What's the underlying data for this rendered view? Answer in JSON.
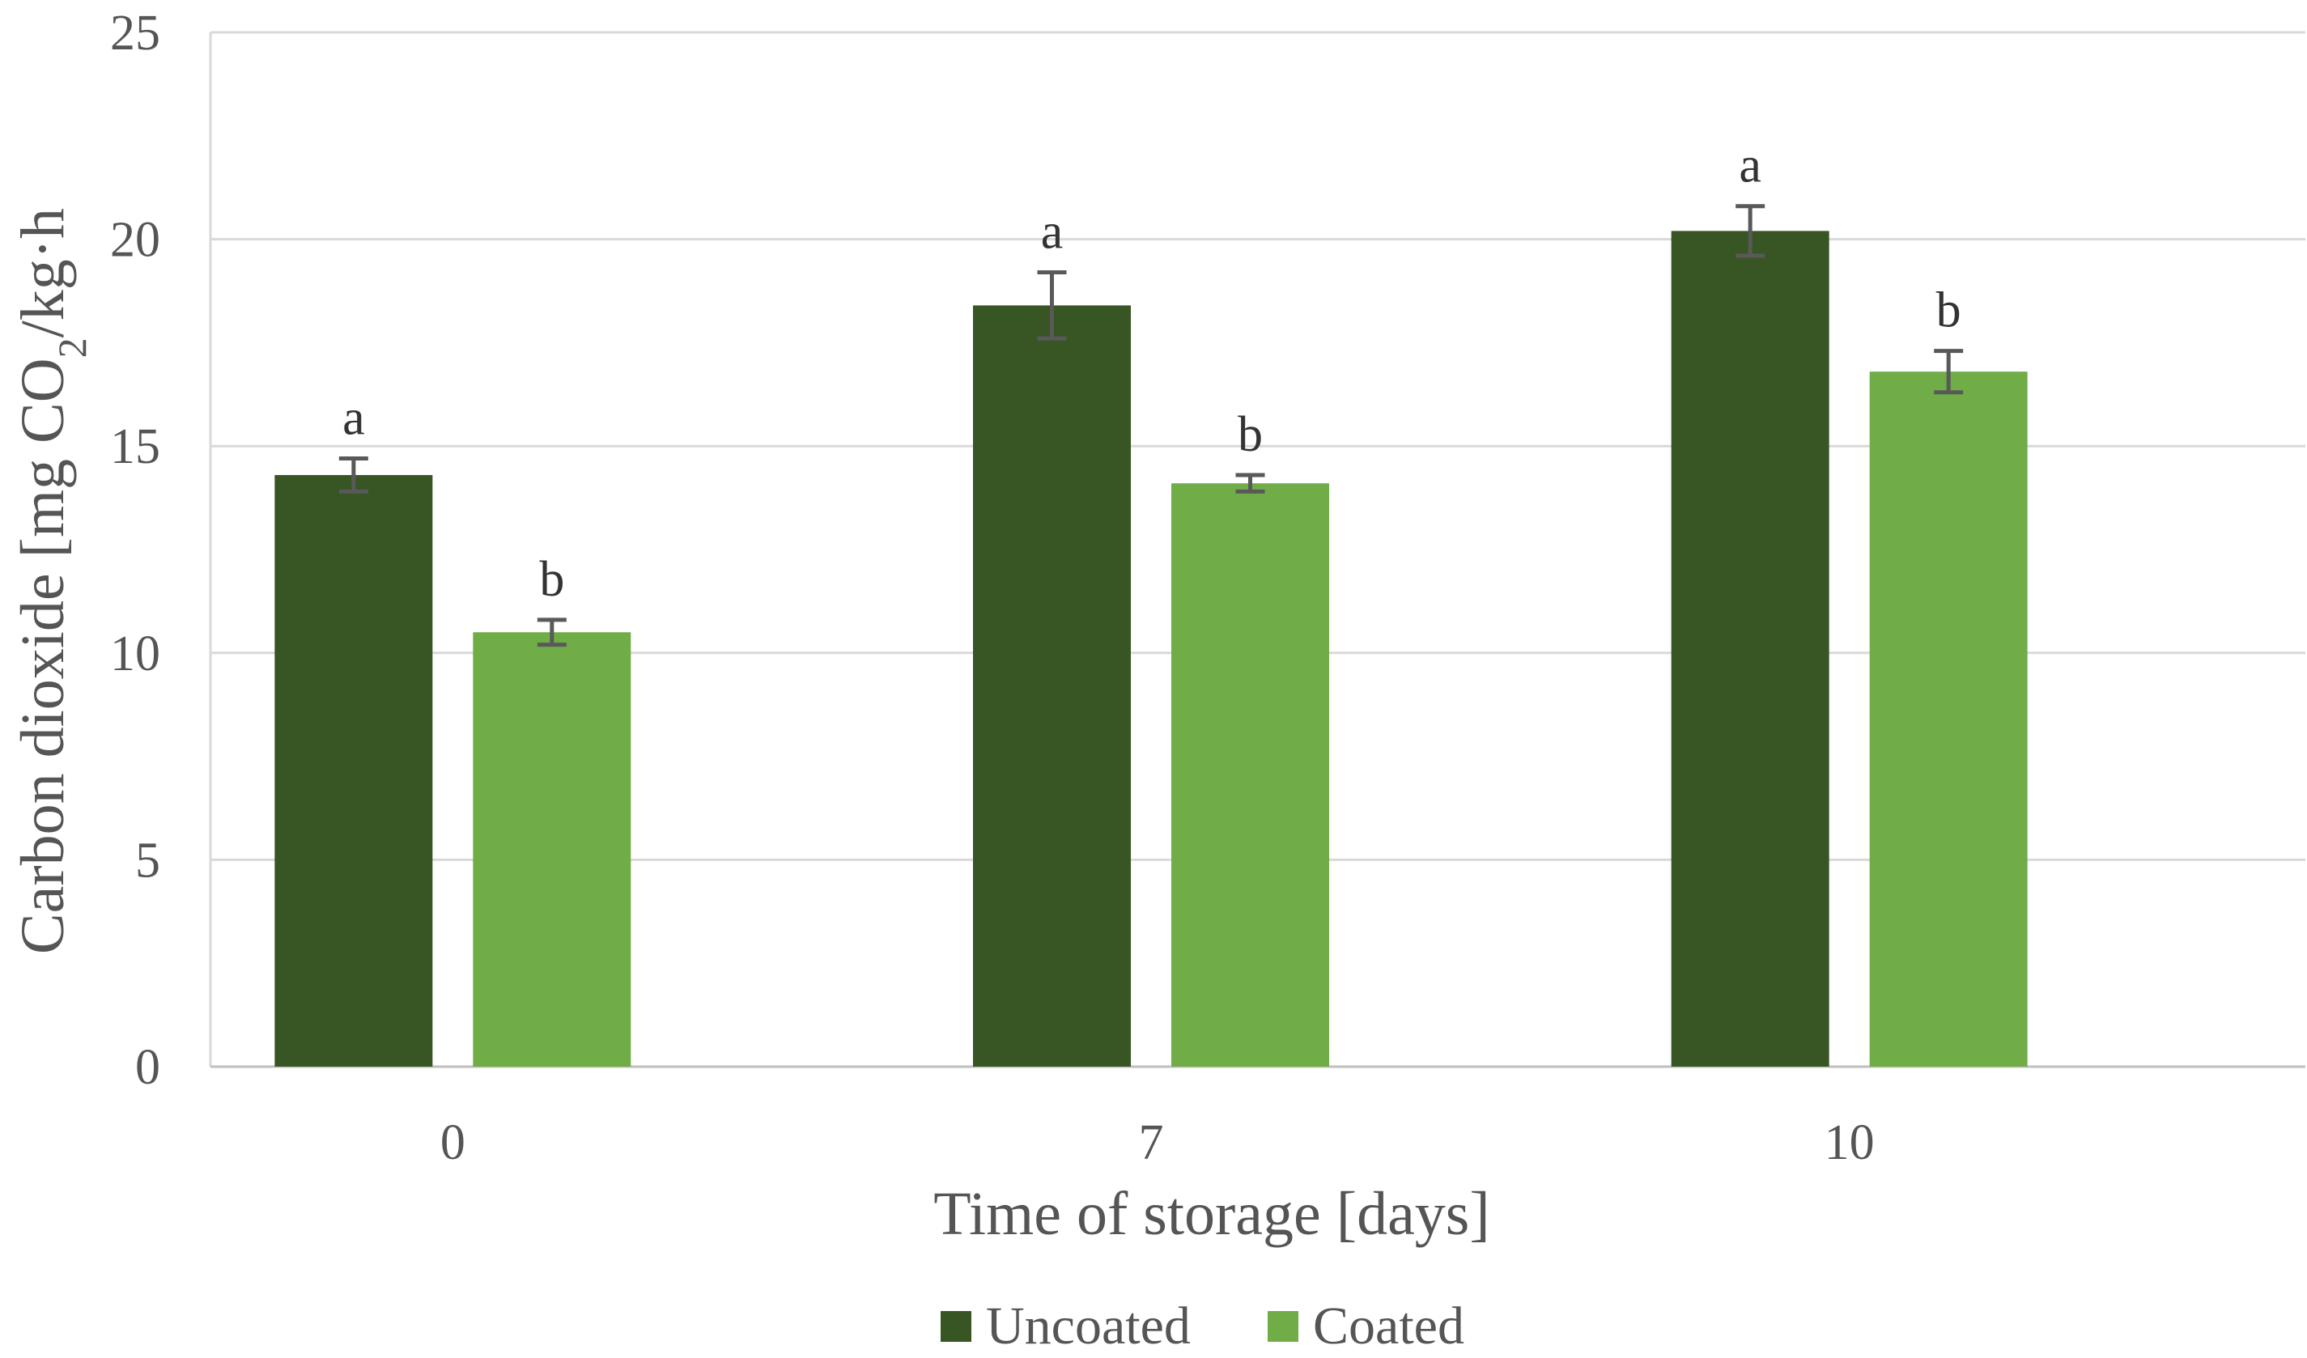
{
  "chart_data": {
    "type": "bar",
    "categories": [
      "0",
      "7",
      "10"
    ],
    "series": [
      {
        "name": "Uncoated",
        "color": "#375623",
        "values": [
          14.3,
          18.4,
          20.2
        ],
        "errors": [
          0.4,
          0.8,
          0.6
        ],
        "labels": [
          "a",
          "a",
          "a"
        ]
      },
      {
        "name": "Coated",
        "color": "#70AD47",
        "values": [
          10.5,
          14.1,
          16.8
        ],
        "errors": [
          0.3,
          0.2,
          0.5
        ],
        "labels": [
          "b",
          "b",
          "b"
        ]
      }
    ],
    "xlabel": "Time of storage [days]",
    "ylabel": {
      "prefix": "Carbon dioxide [mg CO",
      "subscript": "2",
      "suffix": "/kg·h"
    },
    "ylim": [
      0,
      25
    ],
    "yticks": [
      "0",
      "5",
      "10",
      "15",
      "20",
      "25"
    ],
    "grid": true,
    "legend_position": "bottom",
    "gridline_color": "#D9D9D9",
    "errorbar_color": "#595959"
  }
}
